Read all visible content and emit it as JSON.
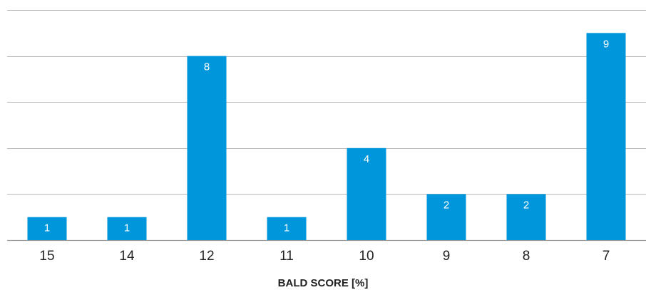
{
  "chart_data": {
    "type": "bar",
    "categories": [
      "15",
      "14",
      "12",
      "11",
      "10",
      "9",
      "8",
      "7"
    ],
    "values": [
      1,
      1,
      8,
      1,
      4,
      2,
      2,
      9
    ],
    "title": "",
    "xlabel": "BALD SCORE [%]",
    "ylabel": "",
    "ylim": [
      0,
      10
    ],
    "grid": true,
    "bar_color": "#0096db"
  }
}
